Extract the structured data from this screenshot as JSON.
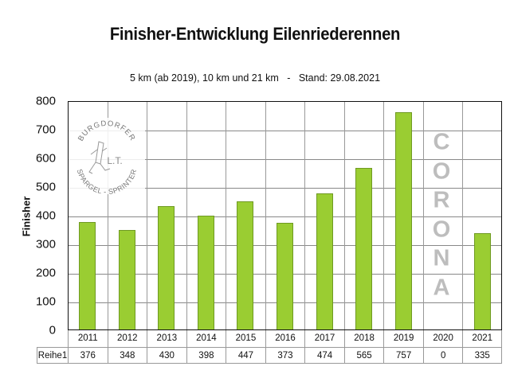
{
  "title": "Finisher-Entwicklung Eilenriederennen",
  "subtitle": "5 km (ab 2019), 10 km und 21 km   -   Stand: 29.08.2021",
  "logo": {
    "top_text": "BURGDORFER",
    "center_text": "L.T.",
    "bottom_text": "SPARGEL - SPRINTER"
  },
  "annotation": {
    "text": "CORONA",
    "letters": [
      "C",
      "O",
      "R",
      "O",
      "N",
      "A"
    ],
    "color": "#bdbdbd"
  },
  "colors": {
    "bar": "#9acd32",
    "bar_border": "#6f9a22",
    "grid": "#888888"
  },
  "table": {
    "series_label": "Reihe1",
    "years": [
      "2011",
      "2012",
      "2013",
      "2014",
      "2015",
      "2016",
      "2017",
      "2018",
      "2019",
      "2020",
      "2021"
    ],
    "values": [
      "376",
      "348",
      "430",
      "398",
      "447",
      "373",
      "474",
      "565",
      "757",
      "0",
      "335"
    ]
  },
  "chart_data": {
    "type": "bar",
    "title": "Finisher-Entwicklung Eilenriederennen",
    "subtitle": "5 km (ab 2019), 10 km und 21 km   -   Stand: 29.08.2021",
    "xlabel": "",
    "ylabel": "Finisher",
    "categories": [
      "2011",
      "2012",
      "2013",
      "2014",
      "2015",
      "2016",
      "2017",
      "2018",
      "2019",
      "2020",
      "2021"
    ],
    "series": [
      {
        "name": "Reihe1",
        "values": [
          376,
          348,
          430,
          398,
          447,
          373,
          474,
          565,
          757,
          0,
          335
        ]
      }
    ],
    "ylim": [
      0,
      800
    ],
    "yticks": [
      0,
      100,
      200,
      300,
      400,
      500,
      600,
      700,
      800
    ],
    "grid": true,
    "legend": "data table below chart",
    "annotations": [
      {
        "text": "CORONA",
        "category": "2020",
        "orientation": "vertical letters"
      }
    ]
  }
}
